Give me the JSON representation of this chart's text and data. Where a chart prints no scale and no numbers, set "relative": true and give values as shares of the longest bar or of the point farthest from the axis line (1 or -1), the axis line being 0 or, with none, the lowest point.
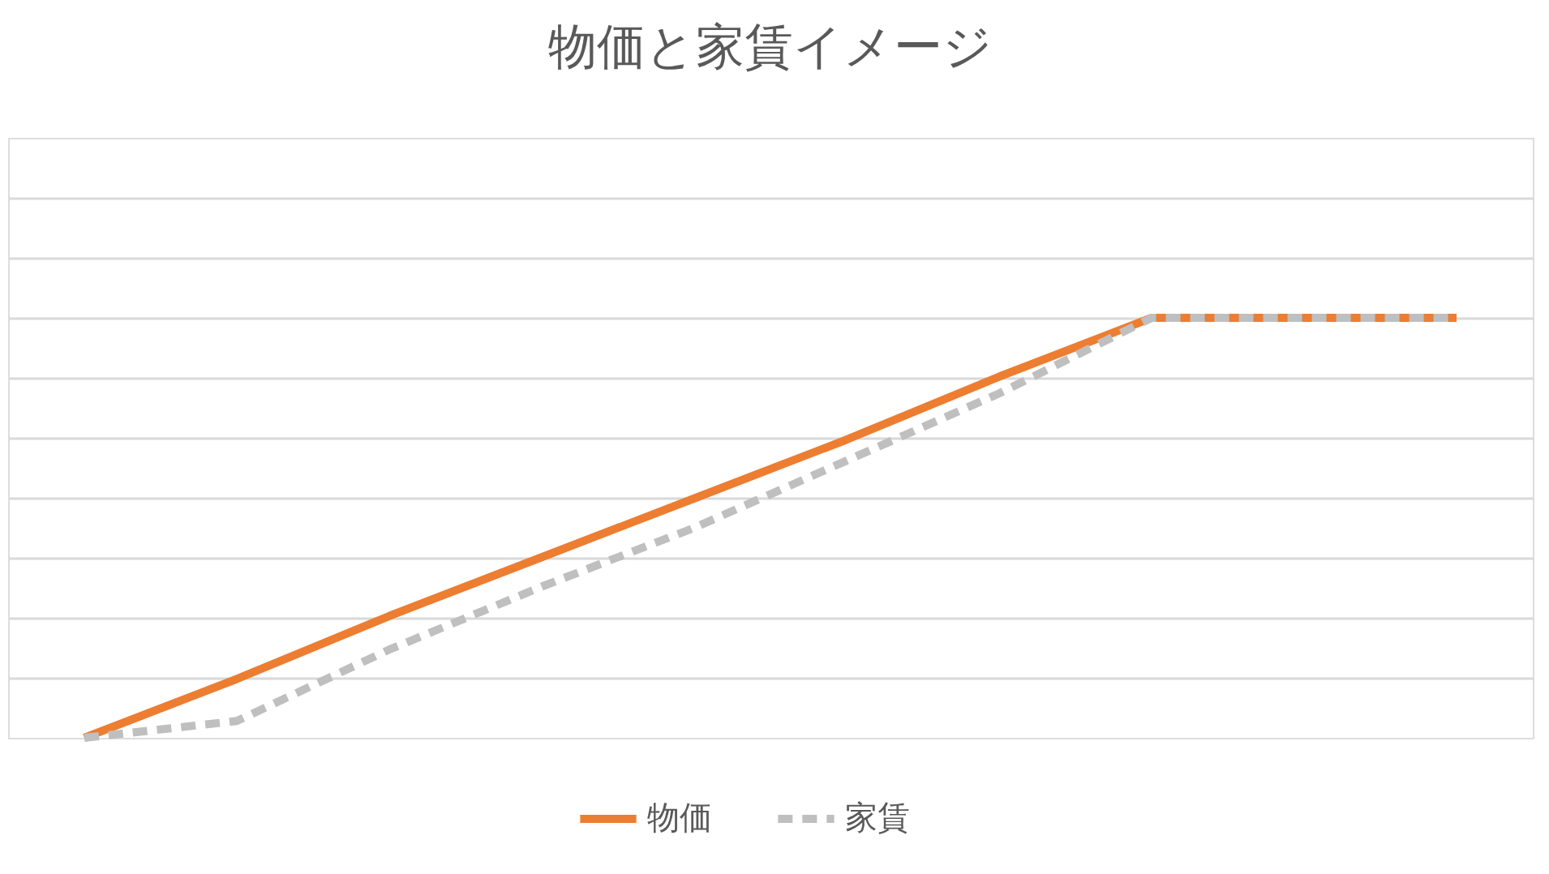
{
  "chart_data": {
    "type": "line",
    "title": "物価と家賃イメージ",
    "relative": true,
    "categories": [
      null,
      null,
      null,
      null,
      null,
      null,
      null,
      null,
      null,
      null
    ],
    "series": [
      {
        "name": "物価",
        "color": "#ed7d31",
        "line_style": "solid",
        "values": [
          0,
          0.14,
          0.29,
          0.43,
          0.57,
          0.71,
          0.86,
          1,
          1,
          1
        ]
      },
      {
        "name": "家賃",
        "color": "#bfbfbf",
        "line_style": "dashed",
        "values": [
          0,
          0.04,
          0.21,
          0.36,
          0.5,
          0.66,
          0.82,
          1,
          1,
          1
        ]
      }
    ],
    "grid": "y",
    "legend": "bottom",
    "tick_labels": false,
    "marker": "none"
  }
}
